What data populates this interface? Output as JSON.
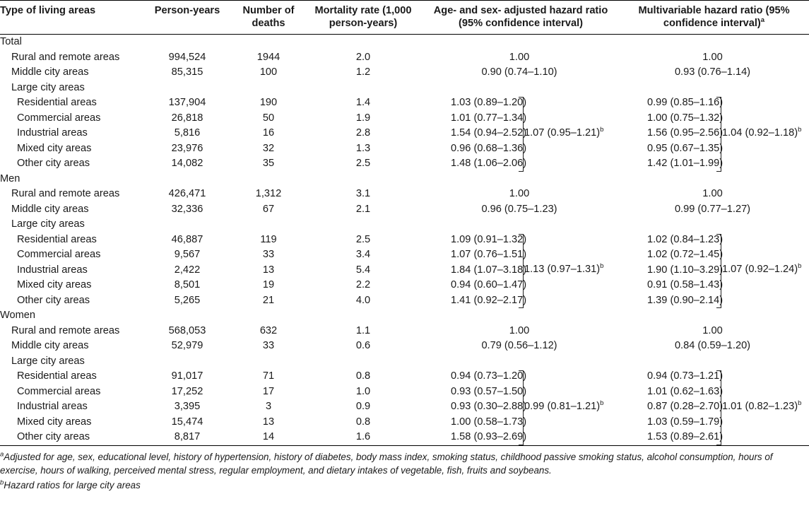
{
  "header": {
    "col1": "Type of living areas",
    "col2": "Person-years",
    "col3": "Number of deaths",
    "col4": "Mortality rate (1,000 person-years)",
    "col5": "Age- and sex- adjusted hazard ratio (95% confidence interval)",
    "col6": "Multivariable hazard ratio (95% confidence interval)",
    "col6_sup": "a"
  },
  "groups": [
    {
      "name": "Total",
      "rows": [
        {
          "label": "Rural and remote areas",
          "py": "994,524",
          "deaths": "1944",
          "rate": "2.0",
          "hr": "1.00",
          "mhr": "1.00",
          "indent": 1,
          "ref": true
        },
        {
          "label": "Middle city areas",
          "py": "85,315",
          "deaths": "100",
          "rate": "1.2",
          "hr": "0.90 (0.74–1.10)",
          "mhr": "0.93 (0.76–1.14)",
          "indent": 1
        },
        {
          "label": "Large city areas",
          "py": "",
          "deaths": "",
          "rate": "",
          "hr": "",
          "mhr": "",
          "indent": 1
        },
        {
          "label": "Residential areas",
          "py": "137,904",
          "deaths": "190",
          "rate": "1.4",
          "hr": "1.03 (0.89–1.20)",
          "mhr": "0.99 (0.85–1.16)",
          "indent": 2
        },
        {
          "label": "Commercial areas",
          "py": "26,818",
          "deaths": "50",
          "rate": "1.9",
          "hr": "1.01 (0.77–1.34)",
          "mhr": "1.00 (0.75–1.32)",
          "indent": 2
        },
        {
          "label": "Industrial areas",
          "py": "5,816",
          "deaths": "16",
          "rate": "2.8",
          "hr": "1.54 (0.94–2.52)",
          "mhr": "1.56 (0.95–2.56)",
          "indent": 2
        },
        {
          "label": "Mixed city areas",
          "py": "23,976",
          "deaths": "32",
          "rate": "1.3",
          "hr": "0.96 (0.68–1.36)",
          "mhr": "0.95 (0.67–1.35)",
          "indent": 2
        },
        {
          "label": "Other city areas",
          "py": "14,082",
          "deaths": "35",
          "rate": "2.5",
          "hr": "1.48 (1.06–2.06)",
          "mhr": "1.42 (1.01–1.99)",
          "indent": 2
        }
      ],
      "pooled_hr": "1.07 (0.95–1.21)",
      "pooled_mhr": "1.04 (0.92–1.18)"
    },
    {
      "name": "Men",
      "rows": [
        {
          "label": "Rural and remote areas",
          "py": "426,471",
          "deaths": "1,312",
          "rate": "3.1",
          "hr": "1.00",
          "mhr": "1.00",
          "indent": 1,
          "ref": true
        },
        {
          "label": "Middle city areas",
          "py": "32,336",
          "deaths": "67",
          "rate": "2.1",
          "hr": "0.96 (0.75–1.23)",
          "mhr": "0.99 (0.77–1.27)",
          "indent": 1
        },
        {
          "label": "Large city areas",
          "py": "",
          "deaths": "",
          "rate": "",
          "hr": "",
          "mhr": "",
          "indent": 1
        },
        {
          "label": "Residential areas",
          "py": "46,887",
          "deaths": "119",
          "rate": "2.5",
          "hr": "1.09 (0.91–1.32)",
          "mhr": "1.02 (0.84–1.23)",
          "indent": 2
        },
        {
          "label": "Commercial areas",
          "py": "9,567",
          "deaths": "33",
          "rate": "3.4",
          "hr": "1.07 (0.76–1.51)",
          "mhr": "1.02 (0.72–1.45)",
          "indent": 2
        },
        {
          "label": "Industrial areas",
          "py": "2,422",
          "deaths": "13",
          "rate": "5.4",
          "hr": "1.84 (1.07–3.18)",
          "mhr": "1.90 (1.10–3.29)",
          "indent": 2
        },
        {
          "label": "Mixed city areas",
          "py": "8,501",
          "deaths": "19",
          "rate": "2.2",
          "hr": "0.94 (0.60–1.47)",
          "mhr": "0.91 (0.58–1.43)",
          "indent": 2
        },
        {
          "label": "Other city areas",
          "py": "5,265",
          "deaths": "21",
          "rate": "4.0",
          "hr": "1.41 (0.92–2.17)",
          "mhr": "1.39 (0.90–2.14)",
          "indent": 2
        }
      ],
      "pooled_hr": "1.13 (0.97–1.31)",
      "pooled_mhr": "1.07 (0.92–1.24)"
    },
    {
      "name": "Women",
      "rows": [
        {
          "label": "Rural and remote areas",
          "py": "568,053",
          "deaths": "632",
          "rate": "1.1",
          "hr": "1.00",
          "mhr": "1.00",
          "indent": 1,
          "ref": true
        },
        {
          "label": "Middle city areas",
          "py": "52,979",
          "deaths": "33",
          "rate": "0.6",
          "hr": "0.79 (0.56–1.12)",
          "mhr": "0.84 (0.59–1.20)",
          "indent": 1
        },
        {
          "label": "Large city areas",
          "py": "",
          "deaths": "",
          "rate": "",
          "hr": "",
          "mhr": "",
          "indent": 1
        },
        {
          "label": "Residential areas",
          "py": "91,017",
          "deaths": "71",
          "rate": "0.8",
          "hr": "0.94 (0.73–1.20)",
          "mhr": "0.94 (0.73–1.21)",
          "indent": 2
        },
        {
          "label": "Commercial areas",
          "py": "17,252",
          "deaths": "17",
          "rate": "1.0",
          "hr": "0.93 (0.57–1.50)",
          "mhr": "1.01 (0.62–1.63)",
          "indent": 2
        },
        {
          "label": "Industrial areas",
          "py": "3,395",
          "deaths": "3",
          "rate": "0.9",
          "hr": "0.93 (0.30–2.88)",
          "mhr": "0.87 (0.28–2.70)",
          "indent": 2
        },
        {
          "label": "Mixed city areas",
          "py": "15,474",
          "deaths": "13",
          "rate": "0.8",
          "hr": "1.00 (0.58–1.73)",
          "mhr": "1.03 (0.59–1.79)",
          "indent": 2
        },
        {
          "label": "Other city areas",
          "py": "8,817",
          "deaths": "14",
          "rate": "1.6",
          "hr": "1.58 (0.93–2.69)",
          "mhr": "1.53 (0.89–2.61)",
          "indent": 2
        }
      ],
      "pooled_hr": "0.99 (0.81–1.21)",
      "pooled_mhr": "1.01 (0.82–1.23)"
    }
  ],
  "pooled_sup": "b",
  "footnotes": {
    "a_mark": "a",
    "a": "Adjusted for age, sex, educational level, history of hypertension, history of diabetes, body mass index, smoking status, childhood passive smoking status, alcohol consumption, hours of exercise, hours of walking, perceived mental stress, regular employment, and dietary intakes of vegetable, fish, fruits and soybeans.",
    "b_mark": "b",
    "b": "Hazard ratios for large city areas"
  }
}
